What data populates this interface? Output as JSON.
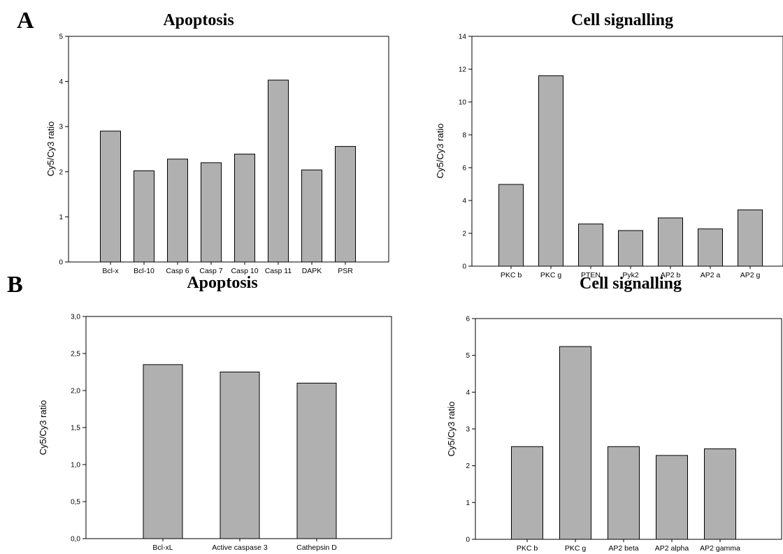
{
  "figure": {
    "panel_labels": [
      "A",
      "B"
    ]
  },
  "chart_data": [
    {
      "type": "bar",
      "title": "Apoptosis",
      "ylabel": "Cy5/Cy3 ratio",
      "xlabel": "",
      "categories": [
        "Bcl-x",
        "Bcl-10",
        "Casp 6",
        "Casp 7",
        "Casp 10",
        "Casp 11",
        "DAPK",
        "PSR"
      ],
      "values": [
        2.9,
        2.02,
        2.28,
        2.2,
        2.39,
        4.03,
        2.04,
        2.56
      ],
      "ylim": [
        0,
        5
      ],
      "yticks": [
        0,
        1,
        2,
        3,
        4,
        5
      ],
      "ytick_labels": [
        "0",
        "1",
        "2",
        "3",
        "4",
        "5"
      ],
      "grid": false,
      "bar_color": "#b0b0b0"
    },
    {
      "type": "bar",
      "title": "Cell signalling",
      "ylabel": "Cy5/Cy3 ratio",
      "xlabel": "",
      "categories": [
        "PKC b",
        "PKC g",
        "PTEN",
        "Pyk2",
        "AP2 b",
        "AP2 a",
        "AP2 g"
      ],
      "values": [
        4.98,
        11.6,
        2.57,
        2.17,
        2.94,
        2.27,
        3.43
      ],
      "ylim": [
        0,
        14
      ],
      "yticks": [
        0,
        2,
        4,
        6,
        8,
        10,
        12,
        14
      ],
      "ytick_labels": [
        "0",
        "2",
        "4",
        "6",
        "8",
        "10",
        "12",
        "14"
      ],
      "grid": false,
      "bar_color": "#b0b0b0"
    },
    {
      "type": "bar",
      "title": "Apoptosis",
      "ylabel": "Cy5/Cy3 ratio",
      "xlabel": "",
      "categories": [
        "Bcl-xL",
        "Active caspase 3",
        "Cathepsin D"
      ],
      "values": [
        2.35,
        2.25,
        2.1
      ],
      "ylim": [
        0,
        3
      ],
      "yticks": [
        0,
        0.5,
        1,
        1.5,
        2,
        2.5,
        3
      ],
      "ytick_labels": [
        "0,0",
        "0,5",
        "1,0",
        "1,5",
        "2,0",
        "2,5",
        "3,0"
      ],
      "grid": false,
      "bar_color": "#b0b0b0"
    },
    {
      "type": "bar",
      "title": "Cell signalling",
      "ylabel": "Cy5/Cy3 ratio",
      "xlabel": "",
      "categories": [
        "PKC b",
        "PKC g",
        "AP2 beta",
        "AP2 alpha",
        "AP2 gamma"
      ],
      "values": [
        2.52,
        5.24,
        2.52,
        2.28,
        2.46
      ],
      "ylim": [
        0,
        6
      ],
      "yticks": [
        0,
        1,
        2,
        3,
        4,
        5,
        6
      ],
      "ytick_labels": [
        "0",
        "1",
        "2",
        "3",
        "4",
        "5",
        "6"
      ],
      "grid": false,
      "bar_color": "#b0b0b0"
    }
  ]
}
